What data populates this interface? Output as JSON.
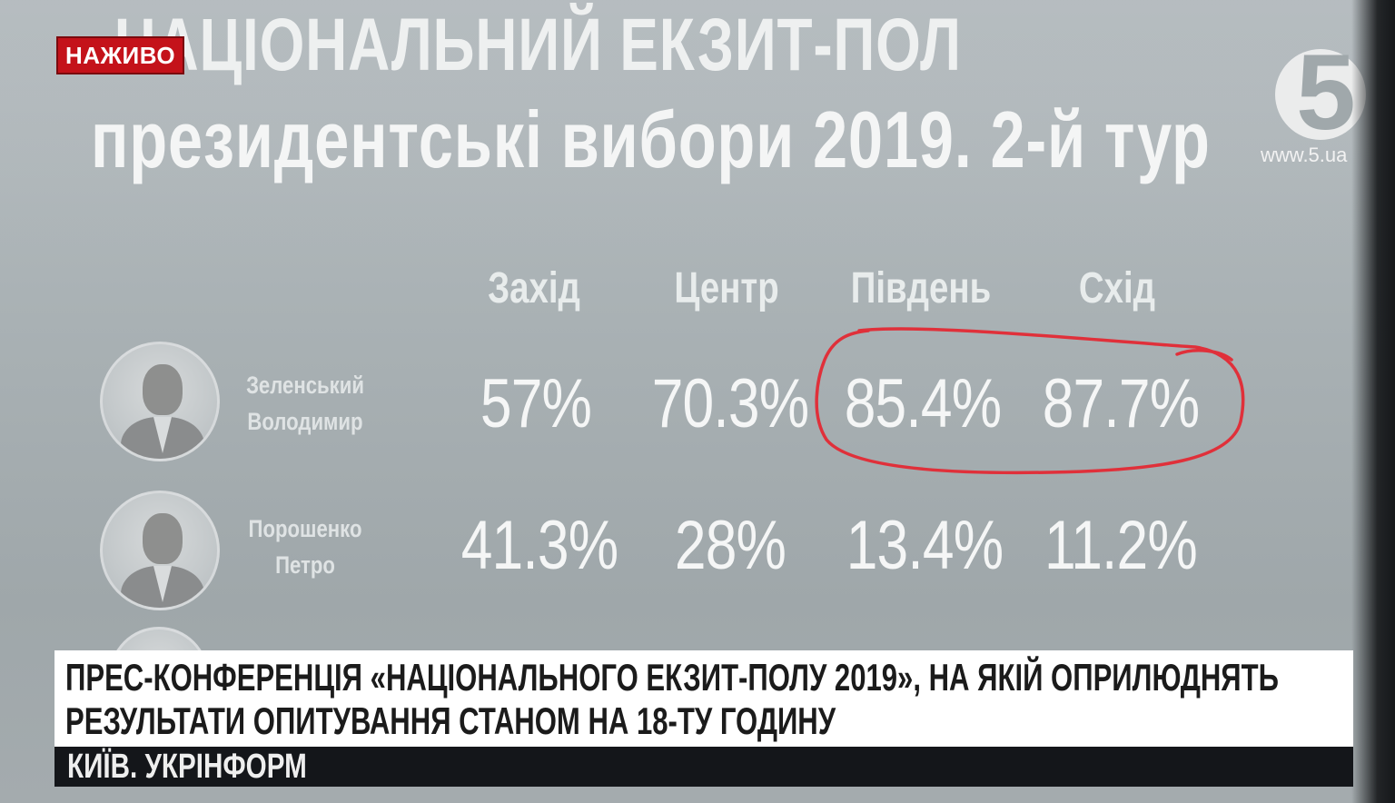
{
  "live_badge": "НАЖИВО",
  "logo": {
    "number": "5",
    "url": "www.5.ua"
  },
  "title": {
    "line1": "НАЦІОНАЛЬНИЙ ЕКЗИТ-ПОЛ",
    "line2": "президентські вибори 2019. 2-й тур"
  },
  "table": {
    "columns": [
      "Захід",
      "Центр",
      "Південь",
      "Схід"
    ],
    "rows": [
      {
        "name_line1": "Зеленський",
        "name_line2": "Володимир",
        "values": [
          "57%",
          "70.3%",
          "85.4%",
          "87.7%"
        ]
      },
      {
        "name_line1": "Порошенко",
        "name_line2": "Петро",
        "values": [
          "41.3%",
          "28%",
          "13.4%",
          "11.2%"
        ]
      }
    ]
  },
  "annotation_color": "#e0303a",
  "ticker": {
    "line1": "ПРЕС-КОНФЕРЕНЦІЯ «НАЦІОНАЛЬНОГО ЕКЗИТ-ПОЛУ 2019», НА ЯКІЙ ОПРИЛЮДНЯТЬ",
    "line2": "РЕЗУЛЬТАТИ ОПИТУВАННЯ СТАНОМ НА 18-ТУ ГОДИНУ",
    "place": "КИЇВ. УКРІНФОРМ"
  }
}
